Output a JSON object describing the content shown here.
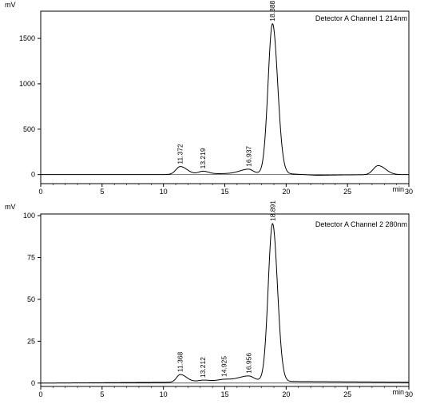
{
  "chart_data": [
    {
      "type": "line",
      "y_unit": "mV",
      "x_unit": "min",
      "channel_label": "Detector A Channel 1 214nm",
      "xlim": [
        0,
        30
      ],
      "ylim": [
        -100,
        1800
      ],
      "x_ticks": [
        0,
        5,
        10,
        15,
        20,
        25,
        30
      ],
      "y_ticks": [
        0,
        500,
        1000,
        1500
      ],
      "grid": false,
      "baseline": 0,
      "drift": [
        [
          0,
          0
        ],
        [
          10,
          0
        ],
        [
          17,
          15
        ],
        [
          20,
          10
        ],
        [
          22.5,
          -8
        ],
        [
          25,
          -3
        ],
        [
          30,
          0
        ]
      ],
      "peaks": [
        {
          "rt": 11.372,
          "label": "11.372",
          "height": 85,
          "sl": 0.35,
          "sr": 0.55
        },
        {
          "rt": 13.219,
          "label": "13.219",
          "height": 30,
          "sl": 0.35,
          "sr": 0.45
        },
        {
          "rt": 16.937,
          "label": "16.937",
          "height": 45,
          "sl": 0.7,
          "sr": 0.35
        },
        {
          "rt": 18.888,
          "label": "18.888",
          "height": 1650,
          "sl": 0.36,
          "sr": 0.42
        },
        {
          "rt": 27.5,
          "label": "",
          "height": 100,
          "sl": 0.4,
          "sr": 0.6
        }
      ]
    },
    {
      "type": "line",
      "y_unit": "mV",
      "x_unit": "min",
      "channel_label": "Detector A Channel 2 280nm",
      "xlim": [
        0,
        30
      ],
      "ylim": [
        -2,
        101
      ],
      "x_ticks": [
        0,
        5,
        10,
        15,
        20,
        25,
        30
      ],
      "y_ticks": [
        0,
        25,
        50,
        75,
        100
      ],
      "grid": false,
      "baseline": 0,
      "drift": [
        [
          0,
          0
        ],
        [
          11,
          0.5
        ],
        [
          16,
          2
        ],
        [
          20,
          1
        ],
        [
          30,
          0.5
        ]
      ],
      "peaks": [
        {
          "rt": 11.368,
          "label": "11.368",
          "height": 4.5,
          "sl": 0.3,
          "sr": 0.5
        },
        {
          "rt": 13.212,
          "label": "13.212",
          "height": 0.6,
          "sl": 0.35,
          "sr": 0.45
        },
        {
          "rt": 14.925,
          "label": "14.925",
          "height": 0.6,
          "sl": 0.4,
          "sr": 0.5
        },
        {
          "rt": 16.956,
          "label": "16.956",
          "height": 2.5,
          "sl": 0.7,
          "sr": 0.4
        },
        {
          "rt": 18.891,
          "label": "18.891",
          "height": 94,
          "sl": 0.35,
          "sr": 0.4
        }
      ]
    }
  ]
}
